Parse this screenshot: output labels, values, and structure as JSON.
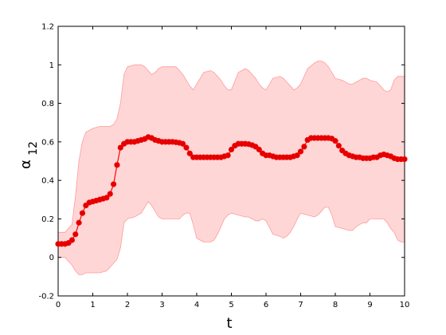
{
  "chart_data": {
    "type": "line",
    "xlabel": "t",
    "ylabel_main": "α",
    "ylabel_sub": "12",
    "xlim": [
      0,
      10
    ],
    "ylim": [
      -0.2,
      1.2
    ],
    "xticks": [
      0,
      1,
      2,
      3,
      4,
      5,
      6,
      7,
      8,
      9,
      10
    ],
    "yticks": [
      -0.2,
      0,
      0.2,
      0.4,
      0.6,
      0.8,
      1,
      1.2
    ],
    "xtick_labels": [
      "0",
      "1",
      "2",
      "3",
      "4",
      "5",
      "6",
      "7",
      "8",
      "9",
      "10"
    ],
    "ytick_labels": [
      "-0.2",
      "0",
      "0.2",
      "0.4",
      "0.6",
      "0.8",
      "1",
      "1.2"
    ],
    "grid": false,
    "colors": {
      "line": "#ff0000",
      "marker": "#e00000",
      "band_fill": "#ffd6d6",
      "band_edge": "#ff9a9a"
    },
    "series": [
      {
        "marker": "circle",
        "x": [
          0.0,
          0.1,
          0.2,
          0.3,
          0.4,
          0.5,
          0.6,
          0.7,
          0.8,
          0.9,
          1.0,
          1.1,
          1.2,
          1.3,
          1.4,
          1.5,
          1.6,
          1.7,
          1.8,
          1.9,
          2.0,
          2.1,
          2.2,
          2.3,
          2.4,
          2.5,
          2.6,
          2.7,
          2.8,
          2.9,
          3.0,
          3.1,
          3.2,
          3.3,
          3.4,
          3.5,
          3.6,
          3.7,
          3.8,
          3.9,
          4.0,
          4.1,
          4.2,
          4.3,
          4.4,
          4.5,
          4.6,
          4.7,
          4.8,
          4.9,
          5.0,
          5.1,
          5.2,
          5.3,
          5.4,
          5.5,
          5.6,
          5.7,
          5.8,
          5.9,
          6.0,
          6.1,
          6.2,
          6.3,
          6.4,
          6.5,
          6.6,
          6.7,
          6.8,
          6.9,
          7.0,
          7.1,
          7.2,
          7.3,
          7.4,
          7.5,
          7.6,
          7.7,
          7.8,
          7.9,
          8.0,
          8.1,
          8.2,
          8.3,
          8.4,
          8.5,
          8.6,
          8.7,
          8.8,
          8.9,
          9.0,
          9.1,
          9.2,
          9.3,
          9.4,
          9.5,
          9.6,
          9.7,
          9.8,
          9.9,
          10.0
        ],
        "y": [
          0.07,
          0.07,
          0.07,
          0.075,
          0.09,
          0.12,
          0.18,
          0.23,
          0.27,
          0.285,
          0.29,
          0.295,
          0.3,
          0.305,
          0.31,
          0.33,
          0.38,
          0.48,
          0.57,
          0.59,
          0.6,
          0.6,
          0.6,
          0.605,
          0.61,
          0.615,
          0.625,
          0.62,
          0.61,
          0.605,
          0.6,
          0.6,
          0.6,
          0.6,
          0.598,
          0.595,
          0.59,
          0.57,
          0.54,
          0.52,
          0.52,
          0.52,
          0.52,
          0.52,
          0.52,
          0.52,
          0.52,
          0.52,
          0.525,
          0.53,
          0.56,
          0.58,
          0.59,
          0.59,
          0.59,
          0.588,
          0.583,
          0.575,
          0.56,
          0.54,
          0.53,
          0.53,
          0.525,
          0.52,
          0.52,
          0.52,
          0.52,
          0.52,
          0.525,
          0.53,
          0.55,
          0.575,
          0.61,
          0.62,
          0.62,
          0.62,
          0.62,
          0.62,
          0.62,
          0.617,
          0.605,
          0.58,
          0.555,
          0.54,
          0.53,
          0.525,
          0.52,
          0.52,
          0.515,
          0.515,
          0.515,
          0.52,
          0.52,
          0.53,
          0.535,
          0.53,
          0.525,
          0.515,
          0.51,
          0.51,
          0.51
        ]
      }
    ],
    "band": {
      "x": [
        0.0,
        0.2,
        0.4,
        0.5,
        0.6,
        0.7,
        0.8,
        1.0,
        1.2,
        1.4,
        1.5,
        1.6,
        1.7,
        1.8,
        1.9,
        2.0,
        2.2,
        2.4,
        2.5,
        2.6,
        2.7,
        2.8,
        2.9,
        3.0,
        3.2,
        3.4,
        3.5,
        3.6,
        3.7,
        3.8,
        3.9,
        4.0,
        4.2,
        4.4,
        4.5,
        4.6,
        4.7,
        4.8,
        4.9,
        5.0,
        5.2,
        5.4,
        5.5,
        5.6,
        5.7,
        5.8,
        5.9,
        6.0,
        6.2,
        6.4,
        6.5,
        6.6,
        6.7,
        6.8,
        6.9,
        7.0,
        7.2,
        7.4,
        7.5,
        7.6,
        7.7,
        7.8,
        7.9,
        8.0,
        8.2,
        8.4,
        8.5,
        8.6,
        8.7,
        8.8,
        8.9,
        9.0,
        9.2,
        9.4,
        9.5,
        9.6,
        9.7,
        9.8,
        9.9,
        10.0
      ],
      "upper": [
        0.13,
        0.13,
        0.17,
        0.32,
        0.5,
        0.6,
        0.65,
        0.67,
        0.68,
        0.68,
        0.68,
        0.69,
        0.72,
        0.8,
        0.95,
        0.99,
        1.0,
        1.0,
        0.99,
        0.97,
        0.95,
        0.96,
        0.98,
        0.99,
        0.99,
        0.99,
        0.97,
        0.95,
        0.92,
        0.89,
        0.87,
        0.9,
        0.96,
        0.97,
        0.96,
        0.94,
        0.92,
        0.89,
        0.87,
        0.87,
        0.96,
        0.98,
        0.97,
        0.95,
        0.93,
        0.9,
        0.88,
        0.87,
        0.93,
        0.94,
        0.93,
        0.91,
        0.89,
        0.87,
        0.88,
        0.9,
        0.98,
        1.01,
        1.02,
        1.02,
        1.01,
        0.99,
        0.96,
        0.93,
        0.92,
        0.9,
        0.9,
        0.91,
        0.92,
        0.93,
        0.93,
        0.92,
        0.91,
        0.87,
        0.86,
        0.87,
        0.92,
        0.94,
        0.94,
        0.94
      ],
      "lower": [
        0.0,
        0.0,
        -0.04,
        -0.07,
        -0.09,
        -0.09,
        -0.08,
        -0.08,
        -0.08,
        -0.07,
        -0.05,
        -0.03,
        -0.01,
        0.05,
        0.18,
        0.2,
        0.21,
        0.23,
        0.26,
        0.29,
        0.27,
        0.24,
        0.21,
        0.2,
        0.2,
        0.2,
        0.2,
        0.22,
        0.23,
        0.23,
        0.17,
        0.1,
        0.08,
        0.08,
        0.09,
        0.12,
        0.16,
        0.2,
        0.22,
        0.23,
        0.22,
        0.21,
        0.21,
        0.2,
        0.19,
        0.19,
        0.2,
        0.19,
        0.12,
        0.11,
        0.1,
        0.11,
        0.13,
        0.16,
        0.2,
        0.23,
        0.22,
        0.21,
        0.22,
        0.24,
        0.26,
        0.26,
        0.22,
        0.16,
        0.15,
        0.14,
        0.14,
        0.16,
        0.17,
        0.18,
        0.18,
        0.2,
        0.2,
        0.2,
        0.18,
        0.15,
        0.13,
        0.09,
        0.08,
        0.08
      ]
    }
  }
}
